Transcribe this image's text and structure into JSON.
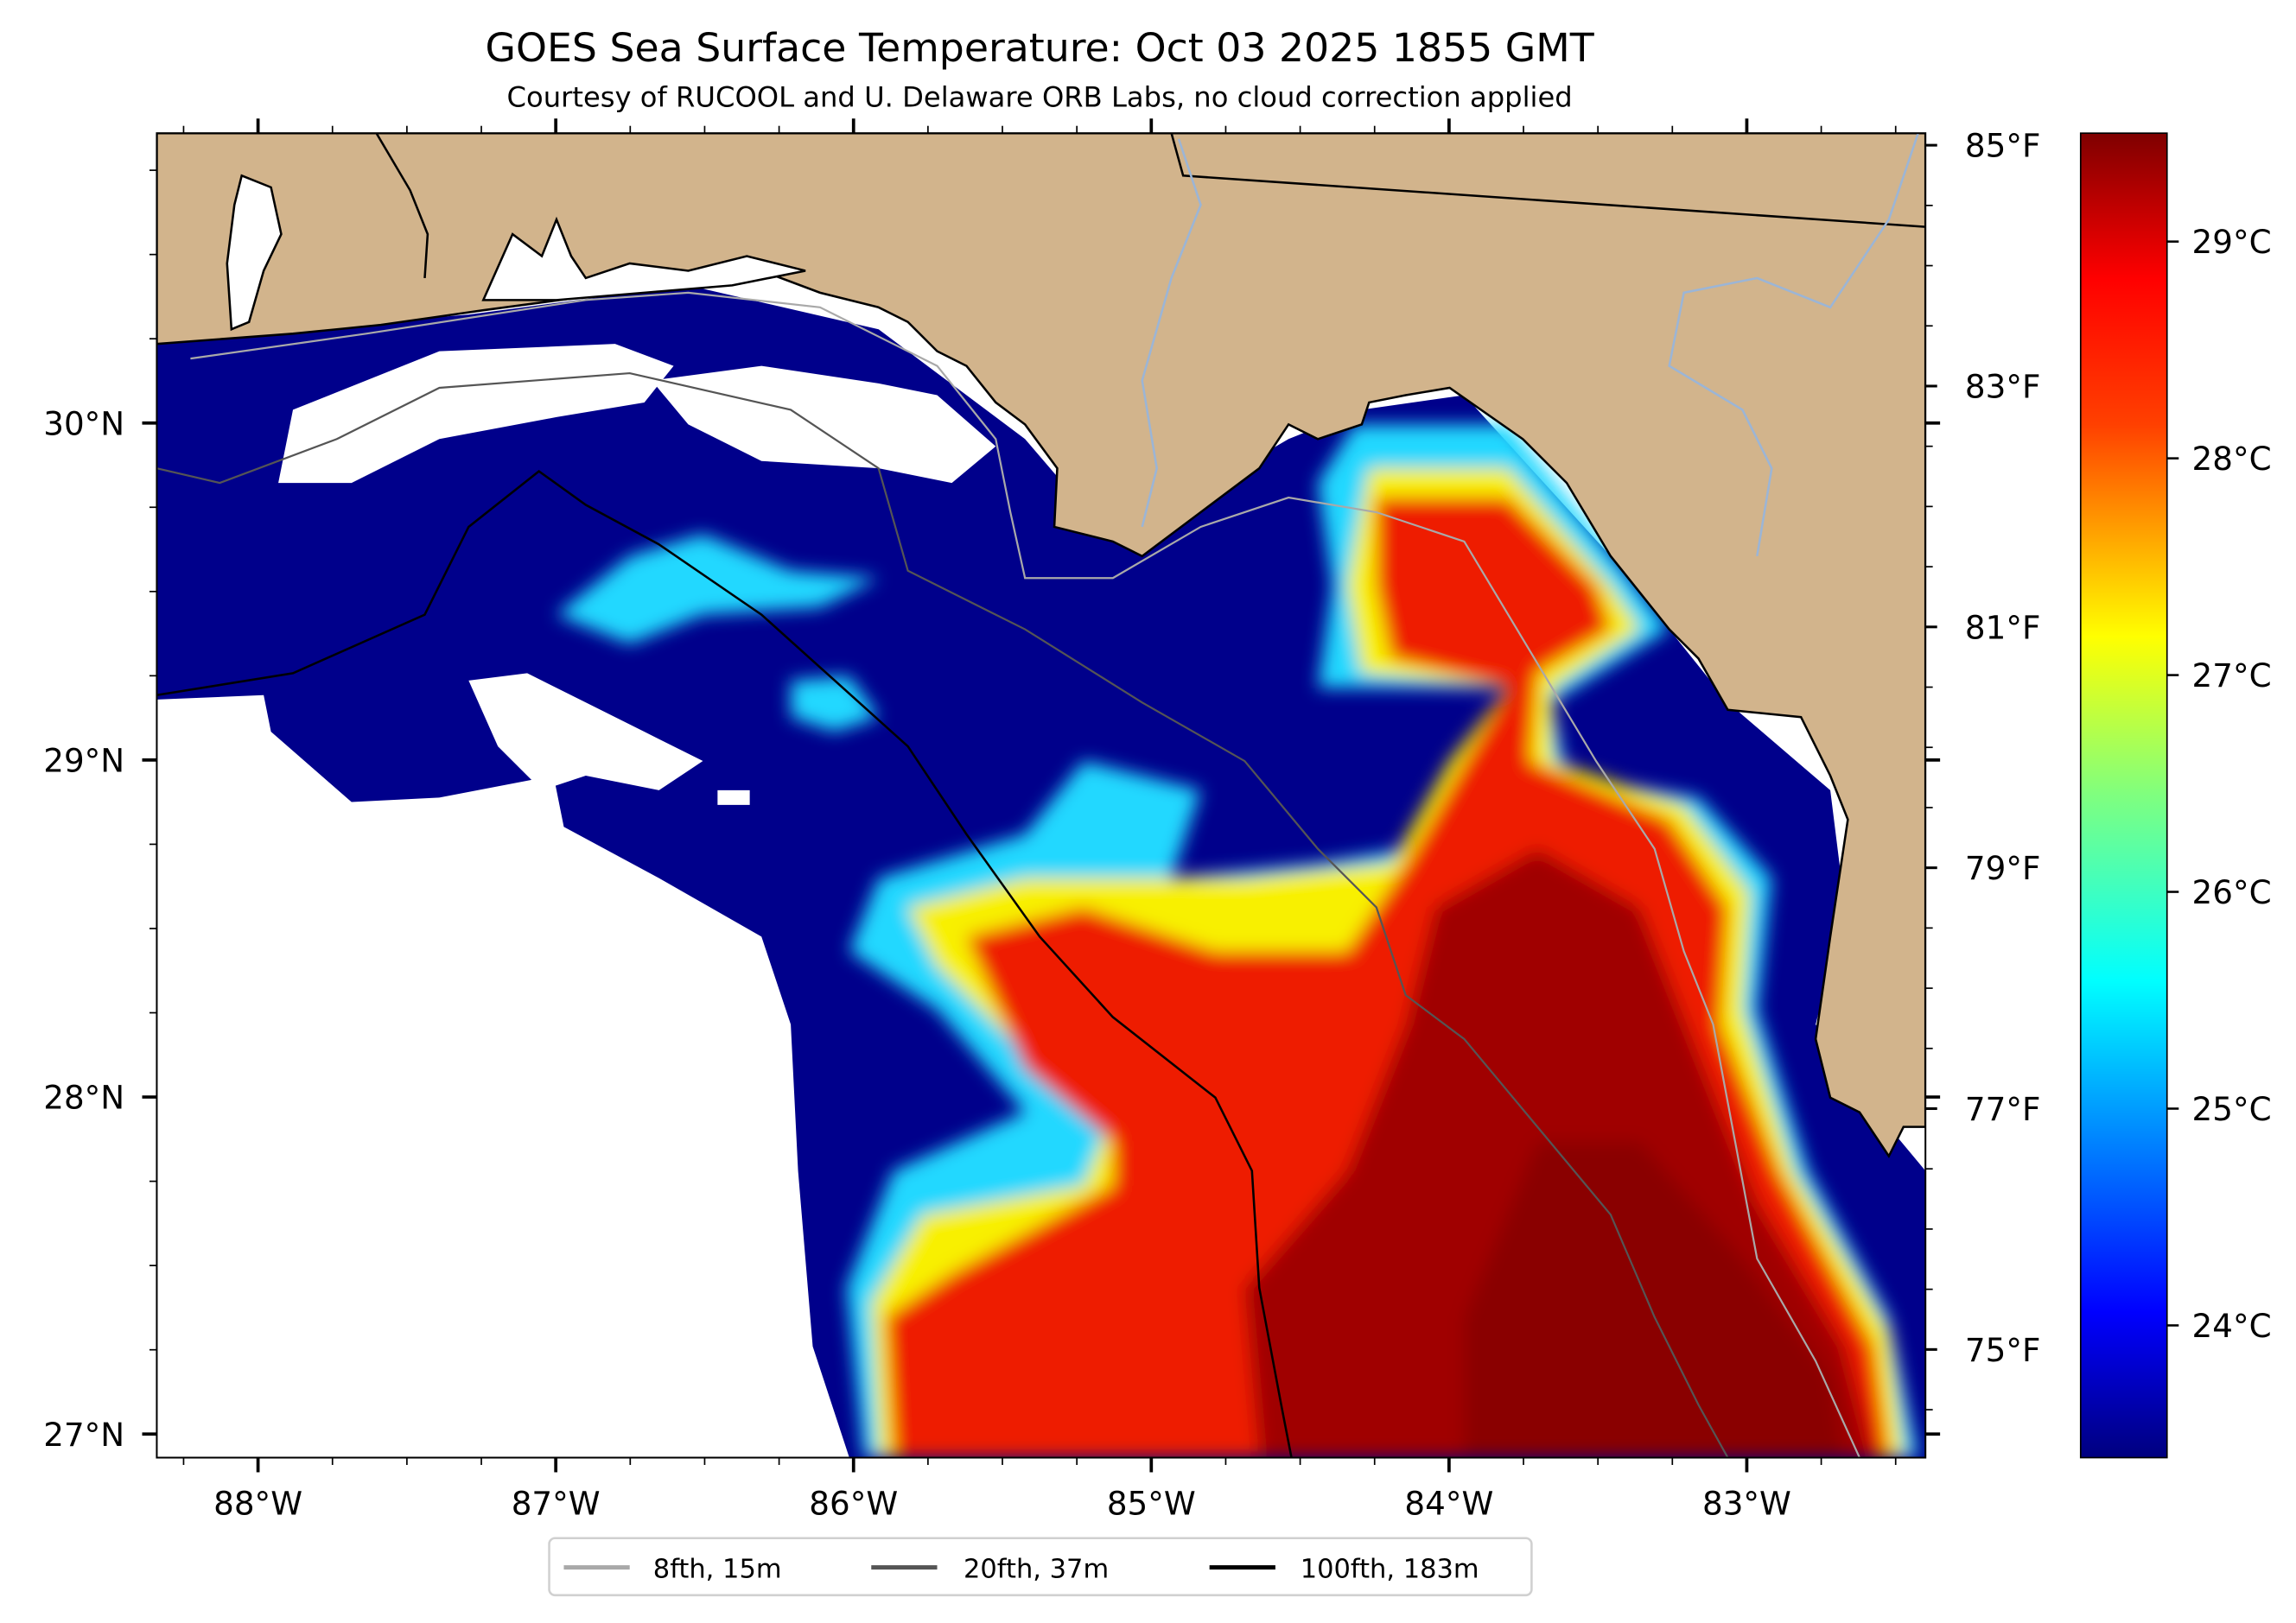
{
  "title": "GOES Sea Surface Temperature: Oct 03 2025 1855 GMT",
  "subtitle": "Courtesy of RUCOOL and U. Delaware ORB Labs, no cloud correction applied",
  "map": {
    "lon_range": [
      -88.34,
      -82.4
    ],
    "lat_range": [
      26.93,
      30.86
    ],
    "lon_ticks": [
      {
        "value": -88,
        "label": "88°W"
      },
      {
        "value": -87,
        "label": "87°W"
      },
      {
        "value": -86,
        "label": "86°W"
      },
      {
        "value": -85,
        "label": "85°W"
      },
      {
        "value": -84,
        "label": "84°W"
      },
      {
        "value": -83,
        "label": "83°W"
      }
    ],
    "lat_ticks": [
      {
        "value": 30,
        "label": "30°N"
      },
      {
        "value": 29,
        "label": "29°N"
      },
      {
        "value": 28,
        "label": "28°N"
      },
      {
        "value": 27,
        "label": "27°N"
      }
    ],
    "land_color": "#d2b48c",
    "cloud_color": "#ffffff"
  },
  "fahrenheit_axis": {
    "ticks": [
      {
        "value": 85,
        "label": "85°F"
      },
      {
        "value": 83,
        "label": "83°F"
      },
      {
        "value": 81,
        "label": "81°F"
      },
      {
        "value": 79,
        "label": "79°F"
      },
      {
        "value": 77,
        "label": "77°F"
      },
      {
        "value": 75,
        "label": "75°F"
      }
    ]
  },
  "colorbar": {
    "range_c": [
      23.39,
      29.5
    ],
    "colormap": "jet",
    "ticks": [
      {
        "value": 29,
        "label": "29°C"
      },
      {
        "value": 28,
        "label": "28°C"
      },
      {
        "value": 27,
        "label": "27°C"
      },
      {
        "value": 26,
        "label": "26°C"
      },
      {
        "value": 25,
        "label": "25°C"
      },
      {
        "value": 24,
        "label": "24°C"
      }
    ]
  },
  "legend": {
    "placement": "bottom-center",
    "items": [
      {
        "label": "8fth, 15m",
        "color": "#a9a9a9"
      },
      {
        "label": "20fth, 37m",
        "color": "#555555"
      },
      {
        "label": "100fth, 183m",
        "color": "#000000"
      }
    ]
  }
}
